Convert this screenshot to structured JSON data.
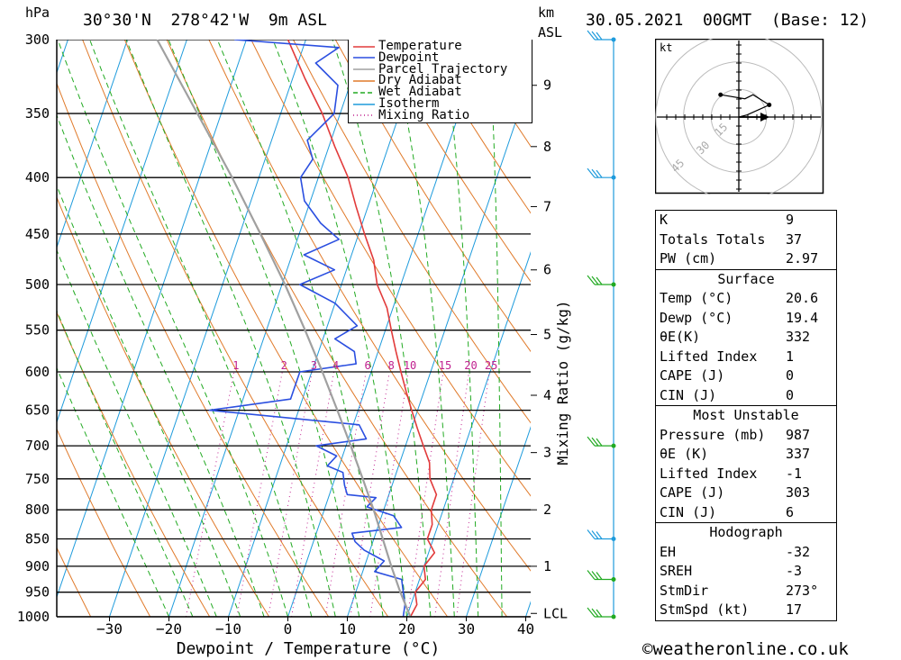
{
  "header": {
    "location": "30°30'N  278°42'W  9m ASL",
    "datetime": "30.05.2021  00GMT  (Base: 12)",
    "left_unit": "hPa",
    "right_unit_top": "km",
    "right_unit_bottom": "ASL"
  },
  "footer": {
    "watermark": "©weatheronline.co.uk"
  },
  "chart_data": {
    "type": "line",
    "title": "",
    "xlabel": "Dewpoint / Temperature (°C)",
    "ylabel": "hPa",
    "y2label": "Mixing Ratio (g/kg)",
    "xlim": [
      -40,
      40
    ],
    "ylim": [
      1000,
      300
    ],
    "x_ticks": [
      "-30",
      "-20",
      "-10",
      "0",
      "10",
      "20",
      "30",
      "40"
    ],
    "pressure_levels": [
      "300",
      "350",
      "400",
      "450",
      "500",
      "550",
      "600",
      "650",
      "700",
      "750",
      "800",
      "850",
      "900",
      "950",
      "1000"
    ],
    "height_km_ticks": [
      {
        "label": "9",
        "p": 330
      },
      {
        "label": "8",
        "p": 375
      },
      {
        "label": "7",
        "p": 425
      },
      {
        "label": "6",
        "p": 485
      },
      {
        "label": "5",
        "p": 555
      },
      {
        "label": "4",
        "p": 630
      },
      {
        "label": "3",
        "p": 710
      },
      {
        "label": "2",
        "p": 800
      },
      {
        "label": "1",
        "p": 900
      },
      {
        "label": "LCL",
        "p": 993
      }
    ],
    "mixing_ratio_labels": [
      "1",
      "2",
      "3",
      "4",
      "6",
      "8",
      "10",
      "15",
      "20",
      "25"
    ],
    "legend": {
      "placement": "top-right of plot",
      "entries": [
        {
          "name": "Temperature",
          "color": "#e23b3b",
          "style": "solid"
        },
        {
          "name": "Dewpoint",
          "color": "#2b4fe0",
          "style": "solid"
        },
        {
          "name": "Parcel Trajectory",
          "color": "#a0a0a0",
          "style": "solid"
        },
        {
          "name": "Dry Adiabat",
          "color": "#e07a2a",
          "style": "solid"
        },
        {
          "name": "Wet Adiabat",
          "color": "#22aa22",
          "style": "dashed"
        },
        {
          "name": "Isotherm",
          "color": "#1e9bdc",
          "style": "solid"
        },
        {
          "name": "Mixing Ratio",
          "color": "#c0208f",
          "style": "dotted"
        }
      ]
    },
    "series": [
      {
        "name": "Temperature",
        "color": "#e23b3b",
        "points": [
          [
            1000,
            20.6
          ],
          [
            975,
            21
          ],
          [
            950,
            20
          ],
          [
            925,
            21
          ],
          [
            900,
            20
          ],
          [
            875,
            21
          ],
          [
            850,
            19
          ],
          [
            825,
            19
          ],
          [
            800,
            18
          ],
          [
            775,
            18
          ],
          [
            750,
            16
          ],
          [
            725,
            15
          ],
          [
            700,
            13
          ],
          [
            675,
            11
          ],
          [
            650,
            9
          ],
          [
            625,
            7
          ],
          [
            600,
            5
          ],
          [
            575,
            3
          ],
          [
            550,
            1
          ],
          [
            525,
            -1
          ],
          [
            500,
            -4
          ],
          [
            475,
            -6
          ],
          [
            450,
            -9
          ],
          [
            425,
            -12
          ],
          [
            400,
            -15
          ],
          [
            375,
            -19
          ],
          [
            350,
            -23
          ],
          [
            325,
            -28
          ],
          [
            300,
            -33
          ]
        ]
      },
      {
        "name": "Dewpoint",
        "color": "#2b4fe0",
        "points": [
          [
            1000,
            19.4
          ],
          [
            975,
            19
          ],
          [
            950,
            18
          ],
          [
            925,
            17
          ],
          [
            910,
            12
          ],
          [
            890,
            13
          ],
          [
            870,
            9
          ],
          [
            855,
            7
          ],
          [
            840,
            6
          ],
          [
            830,
            14
          ],
          [
            810,
            12
          ],
          [
            795,
            7
          ],
          [
            780,
            8
          ],
          [
            775,
            3
          ],
          [
            760,
            2
          ],
          [
            740,
            1
          ],
          [
            730,
            -2
          ],
          [
            715,
            -1
          ],
          [
            700,
            -5
          ],
          [
            690,
            3
          ],
          [
            670,
            1
          ],
          [
            650,
            -25
          ],
          [
            635,
            -12
          ],
          [
            600,
            -12
          ],
          [
            590,
            -3
          ],
          [
            575,
            -4
          ],
          [
            560,
            -8
          ],
          [
            545,
            -5
          ],
          [
            520,
            -10
          ],
          [
            500,
            -17
          ],
          [
            485,
            -12
          ],
          [
            470,
            -18
          ],
          [
            455,
            -13
          ],
          [
            440,
            -17
          ],
          [
            420,
            -21
          ],
          [
            400,
            -23
          ],
          [
            385,
            -22
          ],
          [
            370,
            -24
          ],
          [
            350,
            -21
          ],
          [
            330,
            -22
          ],
          [
            315,
            -27
          ],
          [
            305,
            -24
          ],
          [
            300,
            -42
          ]
        ]
      },
      {
        "name": "Parcel Trajectory",
        "color": "#a0a0a0",
        "points": [
          [
            1000,
            20.6
          ],
          [
            950,
            17.5
          ],
          [
            900,
            14.5
          ],
          [
            850,
            11.5
          ],
          [
            800,
            8.3
          ],
          [
            750,
            4.7
          ],
          [
            700,
            0.8
          ],
          [
            650,
            -3.5
          ],
          [
            600,
            -8.2
          ],
          [
            550,
            -13.5
          ],
          [
            500,
            -19.5
          ],
          [
            450,
            -26.5
          ],
          [
            400,
            -34.5
          ],
          [
            350,
            -44
          ],
          [
            300,
            -55
          ]
        ]
      }
    ]
  },
  "hodograph": {
    "unit_label": "kt",
    "ring_labels": [
      "15",
      "30",
      "45"
    ],
    "points_kt": [
      [
        0,
        0
      ],
      [
        4,
        1
      ],
      [
        15,
        6
      ],
      [
        7,
        11
      ],
      [
        3,
        9
      ],
      [
        -9,
        11
      ]
    ]
  },
  "index_table": {
    "general": [
      {
        "label": "K",
        "value": "9"
      },
      {
        "label": "Totals Totals",
        "value": "37"
      },
      {
        "label": "PW (cm)",
        "value": "2.97"
      }
    ],
    "surface_title": "Surface",
    "surface": [
      {
        "label": "Temp (°C)",
        "value": "20.6"
      },
      {
        "label": "Dewp (°C)",
        "value": "19.4"
      },
      {
        "label": "θE(K)",
        "value": "332"
      },
      {
        "label": "Lifted Index",
        "value": "1"
      },
      {
        "label": "CAPE (J)",
        "value": "0"
      },
      {
        "label": "CIN (J)",
        "value": "0"
      }
    ],
    "mu_title": "Most Unstable",
    "most_unstable": [
      {
        "label": "Pressure (mb)",
        "value": "987"
      },
      {
        "label": "θE (K)",
        "value": "337"
      },
      {
        "label": "Lifted Index",
        "value": "-1"
      },
      {
        "label": "CAPE (J)",
        "value": "303"
      },
      {
        "label": "CIN (J)",
        "value": "6"
      }
    ],
    "hodo_title": "Hodograph",
    "hodograph": [
      {
        "label": "EH",
        "value": "-32"
      },
      {
        "label": "SREH",
        "value": "-3"
      },
      {
        "label": "StmDir",
        "value": "273°"
      },
      {
        "label": "StmSpd (kt)",
        "value": "17"
      }
    ]
  },
  "wind_barbs": [
    {
      "p": 300,
      "color": "#1e9bdc"
    },
    {
      "p": 400,
      "color": "#1e9bdc"
    },
    {
      "p": 500,
      "color": "#22aa22"
    },
    {
      "p": 700,
      "color": "#22aa22"
    },
    {
      "p": 850,
      "color": "#1e9bdc"
    },
    {
      "p": 925,
      "color": "#22aa22"
    },
    {
      "p": 1000,
      "color": "#22aa22"
    }
  ]
}
